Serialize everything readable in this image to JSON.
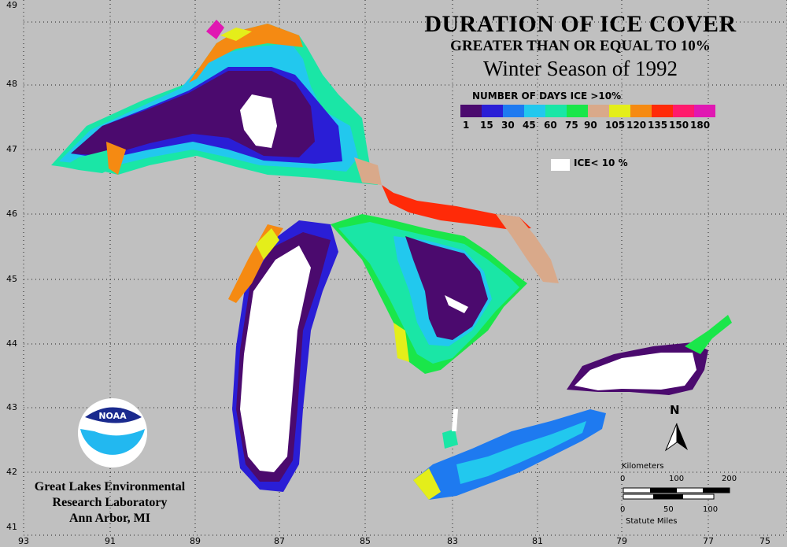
{
  "title": "DURATION OF ICE COVER",
  "subtitle": "GREATER THAN OR EQUAL TO 10%",
  "season": "Winter Season of 1992",
  "legend": {
    "title": "NUMBER OF DAYS ICE >10%",
    "ticks": [
      "1",
      "15",
      "30",
      "45",
      "60",
      "75",
      "90",
      "105",
      "120",
      "135",
      "150",
      "180"
    ],
    "colors": [
      "#4b0a6e",
      "#2a1ed6",
      "#1e7af0",
      "#22c8ee",
      "#1ae6a6",
      "#1ae64a",
      "#d9a98a",
      "#e4ee1a",
      "#f58a12",
      "#ff2a08",
      "#ff1a6c",
      "#e018b2"
    ],
    "ice_label": "ICE< 10 %"
  },
  "axes": {
    "lat_labels": [
      "49",
      "48",
      "47",
      "46",
      "45",
      "44",
      "43",
      "42",
      "41"
    ],
    "lon_labels": [
      "93",
      "91",
      "89",
      "87",
      "85",
      "83",
      "81",
      "79",
      "77",
      "75"
    ]
  },
  "organization": {
    "logo_text": "NOAA",
    "line1": "Great Lakes Environmental",
    "line2": "Research Laboratory",
    "line3": "Ann Arbor, MI"
  },
  "scale": {
    "km_label": "Kilometers",
    "km_ticks": [
      "0",
      "100",
      "200"
    ],
    "mi_ticks": [
      "0",
      "50",
      "100"
    ],
    "mi_label": "Statute Miles"
  },
  "north_label": "N"
}
